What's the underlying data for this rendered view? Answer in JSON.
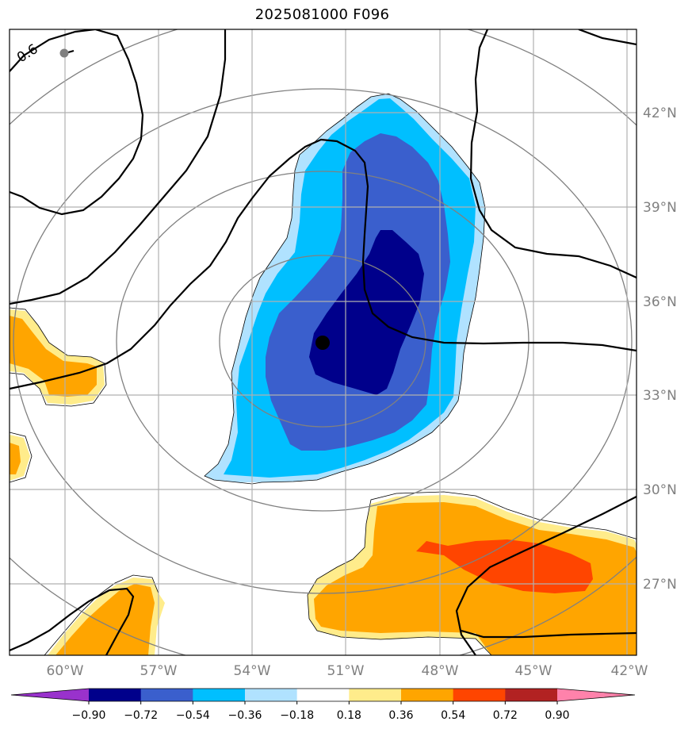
{
  "title": "2025081000 F096",
  "longitude_labels": [
    "60°W",
    "57°W",
    "54°W",
    "51°W",
    "48°W",
    "45°W",
    "42°W"
  ],
  "latitude_labels": [
    "42°N",
    "39°N",
    "36°N",
    "33°N",
    "30°N",
    "27°N"
  ],
  "colorbar": {
    "tick_labels": [
      "−0.90",
      "−0.72",
      "−0.54",
      "−0.36",
      "−0.18",
      "0.18",
      "0.36",
      "0.54",
      "0.72",
      "0.90"
    ],
    "colors": [
      "#9932cc",
      "#00008b",
      "#3a5fcd",
      "#00bfff",
      "#b0e2ff",
      "#ffffff",
      "#ffec8b",
      "#ffa500",
      "#ff4500",
      "#b22222",
      "#ff82ab"
    ]
  },
  "contour_label": "0.6",
  "colors": {
    "contour_line": "#000000",
    "range_rings": "#808080",
    "gridlines": "#b0b0b0",
    "center_marker": "#000000",
    "secondary_marker": "#808080"
  }
}
